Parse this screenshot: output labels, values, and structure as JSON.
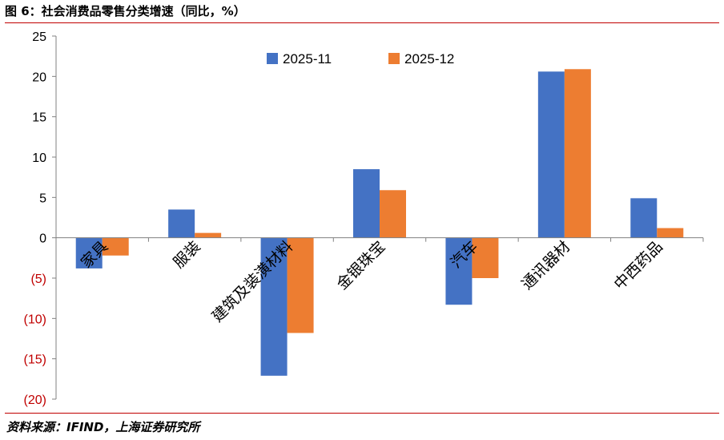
{
  "title": "图 6：社会消费品零售分类增速（同比，%）",
  "source": "资料来源：IFIND，上海证券研究所",
  "colors": {
    "series1": "#4472c4",
    "series2": "#ed7d31",
    "negative_tick": "#c00000",
    "axis": "#808080",
    "rule": "#c00000"
  },
  "chart_data": {
    "type": "bar",
    "categories": [
      "家具",
      "服装",
      "建筑及装潢材料",
      "金银珠宝",
      "汽车",
      "通讯器材",
      "中西药品"
    ],
    "series": [
      {
        "name": "2025-11",
        "values": [
          -3.8,
          3.5,
          -17.1,
          8.5,
          -8.3,
          20.6,
          4.9
        ]
      },
      {
        "name": "2025-12",
        "values": [
          -2.2,
          0.6,
          -11.8,
          5.9,
          -5.0,
          20.9,
          1.2
        ]
      }
    ],
    "ylim": [
      -20,
      25
    ],
    "yticks": [
      25,
      20,
      15,
      10,
      5,
      0,
      -5,
      -10,
      -15,
      -20
    ],
    "ytick_labels": [
      "25",
      "20",
      "15",
      "10",
      "5",
      "0",
      "(5)",
      "(10)",
      "(15)",
      "(20)"
    ],
    "legend_position": "top-center",
    "grid": false
  }
}
